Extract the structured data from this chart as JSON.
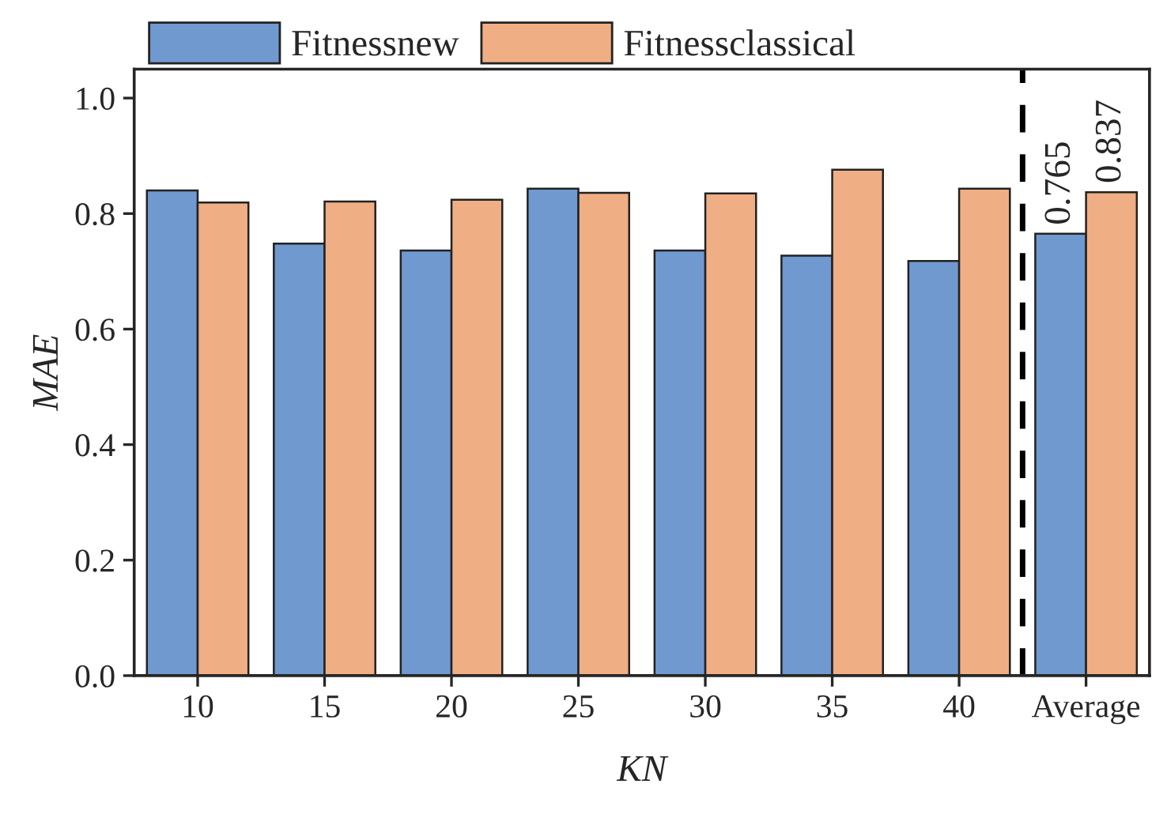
{
  "chart_data": {
    "type": "bar",
    "xlabel": "KN",
    "ylabel": "MAE",
    "categories": [
      "10",
      "15",
      "20",
      "25",
      "30",
      "35",
      "40",
      "Average"
    ],
    "series": [
      {
        "name": "Fitnessnew",
        "color": "#7099d0",
        "values": [
          0.84,
          0.748,
          0.736,
          0.843,
          0.736,
          0.727,
          0.718,
          0.765
        ],
        "value_labels": [
          null,
          null,
          null,
          null,
          null,
          null,
          null,
          "0.765"
        ]
      },
      {
        "name": "Fitnessclassical",
        "color": "#f0ae84",
        "values": [
          0.819,
          0.821,
          0.824,
          0.836,
          0.835,
          0.876,
          0.843,
          0.837
        ],
        "value_labels": [
          null,
          null,
          null,
          null,
          null,
          null,
          null,
          "0.837"
        ]
      }
    ],
    "ylim": [
      0,
      1.05
    ],
    "yticks": [
      {
        "value": 0,
        "label": "0.0"
      },
      {
        "value": 0.2,
        "label": "0.2"
      },
      {
        "value": 0.4,
        "label": "0.4"
      },
      {
        "value": 0.6,
        "label": "0.6"
      },
      {
        "value": 0.8,
        "label": "0.8"
      },
      {
        "value": 1.0,
        "label": "1.0"
      }
    ],
    "legend": "top",
    "grid": false
  }
}
